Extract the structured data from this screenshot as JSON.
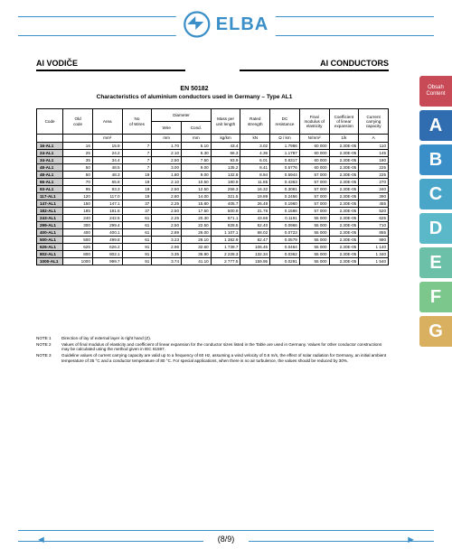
{
  "logo_text": "ELBA",
  "heading_left": "Al VODIČE",
  "heading_right": "Al CONDUCTORS",
  "subtitle_line1": "EN 50182",
  "subtitle_line2": "Characteristics of aluminium conductors used in Germany – Type AL1",
  "side_tabs": [
    {
      "label": "Obsah\nContent",
      "cls": "tab-tab",
      "big": false
    },
    {
      "label": "A",
      "cls": "tab-a",
      "big": true
    },
    {
      "label": "B",
      "cls": "tab-b",
      "big": true
    },
    {
      "label": "C",
      "cls": "tab-c",
      "big": true
    },
    {
      "label": "D",
      "cls": "tab-d",
      "big": true
    },
    {
      "label": "E",
      "cls": "tab-e",
      "big": true
    },
    {
      "label": "F",
      "cls": "tab-f",
      "big": true
    },
    {
      "label": "G",
      "cls": "tab-g",
      "big": true
    }
  ],
  "columns_top": [
    "Code",
    "Old\ncode",
    "Area",
    "No\nof Wires",
    "Diameter",
    "",
    "Mass per\nunit length",
    "Rated\nstrength",
    "DC\nresistance",
    "Final\nmodulus of\nelasticity",
    "Coefficient\nof linear\nexpansion",
    "Current\ncarrying\ncapacity"
  ],
  "columns_mid": [
    "",
    "",
    "",
    "",
    "Wire",
    "Cond.",
    "",
    "",
    "",
    "",
    "",
    ""
  ],
  "columns_unit": [
    "",
    "",
    "mm²",
    "",
    "mm",
    "mm",
    "kg/km",
    "kN",
    "Ω / km",
    "N/mm²",
    "1/k",
    "A"
  ],
  "rows": [
    [
      "16-AL1",
      "16",
      "15.9",
      "7",
      "1.70",
      "5.10",
      "43.4",
      "3.02",
      "1.7986",
      "60 000",
      "2.30E-05",
      "110"
    ],
    [
      "24-AL1",
      "25",
      "24.2",
      "7",
      "2.10",
      "6.30",
      "66.3",
      "4.36",
      "1.1787",
      "60 000",
      "2.30E-05",
      "145"
    ],
    [
      "34-AL1",
      "35",
      "34.4",
      "7",
      "2.50",
      "7.50",
      "93.9",
      "6.01",
      "0.8317",
      "60 000",
      "2.30E-05",
      "180"
    ],
    [
      "48-AL1",
      "50",
      "48.5",
      "7",
      "3.00",
      "9.00",
      "135.2",
      "8.41",
      "0.5776",
      "60 000",
      "2.30E-05",
      "225"
    ],
    [
      "48-AL1",
      "50",
      "48.3",
      "19",
      "1.80",
      "9.00",
      "132.8",
      "8.94",
      "0.5944",
      "57 000",
      "2.30E-05",
      "225"
    ],
    [
      "66-AL1",
      "70",
      "65.8",
      "19",
      "2.10",
      "10.50",
      "180.9",
      "11.85",
      "0.4363",
      "57 000",
      "2.30E-05",
      "270"
    ],
    [
      "93-AL1",
      "95",
      "93.3",
      "19",
      "2.50",
      "12.50",
      "256.3",
      "16.32",
      "0.3081",
      "57 000",
      "2.30E-05",
      "340"
    ],
    [
      "117-AL1",
      "120",
      "117.0",
      "19",
      "2.80",
      "14.00",
      "321.5",
      "19.89",
      "0.2456",
      "57 000",
      "2.30E-05",
      "390"
    ],
    [
      "147-AL1",
      "150",
      "147.1",
      "37",
      "2.25",
      "15.80",
      "405.7",
      "26.48",
      "0.1960",
      "57 000",
      "2.30E-05",
      "455"
    ],
    [
      "182-AL1",
      "185",
      "181.6",
      "37",
      "2.50",
      "17.50",
      "500.9",
      "31.76",
      "0.1586",
      "57 000",
      "2.30E-05",
      "520"
    ],
    [
      "243-AL1",
      "240",
      "242.5",
      "61",
      "2.25",
      "20.30",
      "671.1",
      "43.66",
      "0.1191",
      "55 000",
      "2.30E-05",
      "625"
    ],
    [
      "299-AL1",
      "300",
      "299.4",
      "61",
      "2.50",
      "22.50",
      "828.5",
      "52.40",
      "0.0966",
      "55 000",
      "2.30E-05",
      "710"
    ],
    [
      "400-AL1",
      "400",
      "400.1",
      "61",
      "2.89",
      "26.00",
      "1 107.1",
      "68.02",
      "0.0723",
      "55 000",
      "2.30E-05",
      "855"
    ],
    [
      "500-AL1",
      "500",
      "499.8",
      "61",
      "3.23",
      "29.10",
      "1 382.9",
      "82.47",
      "0.0579",
      "55 000",
      "2.30E-05",
      "990"
    ],
    [
      "626-AL1",
      "625",
      "626.2",
      "91",
      "2.96",
      "32.60",
      "1 739.7",
      "106.45",
      "0.0464",
      "55 000",
      "2.30E-05",
      "1 140"
    ],
    [
      "802-AL1",
      "800",
      "802.1",
      "91",
      "3.35",
      "36.90",
      "2 228.3",
      "132.34",
      "0.0362",
      "55 000",
      "2.30E-05",
      "1 340"
    ],
    [
      "1000-AL1",
      "1000",
      "999.7",
      "91",
      "3.74",
      "41.10",
      "2 777.5",
      "159.95",
      "0.0291",
      "55 000",
      "2.30E-05",
      "1 540"
    ]
  ],
  "notes": [
    {
      "lab": "NOTE 1",
      "txt": "Direction of lay of external layer is right hand (Z)."
    },
    {
      "lab": "NOTE 2",
      "txt": "Values of final modulus of elasticity and coefficient of linear expansion for the conductor sizes listed in the Table are used in Germany. Values for other conductor constructions may be calculated using the method given in IEC 61597."
    },
    {
      "lab": "NOTE 3",
      "txt": "Guideline values of current carrying capacity are valid up to a frequency of 60 Hz, assuming a wind velocity of 0.6 m/s, the effect of solar radiation for Germany, an initial ambient temperature of 35 °C and a conductor temperature of 80 °C. For special applications, when there is no air turbulence, the values should be reduced by 30%."
    }
  ],
  "pager": "(8/9)",
  "nav_prev": "◄",
  "nav_next": "►"
}
